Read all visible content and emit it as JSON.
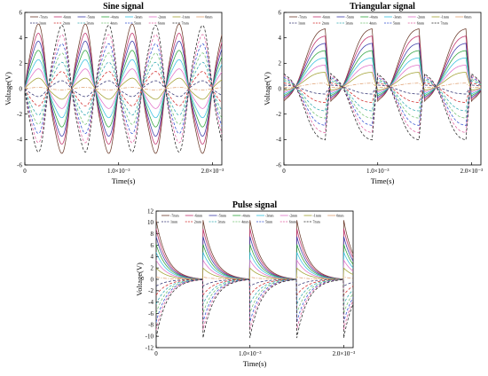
{
  "chart_data": [
    {
      "type": "line",
      "title": "Sine signal",
      "xlabel": "Time(s)",
      "ylabel": "Voltage(V)",
      "xlim": [
        0,
        0.0021
      ],
      "ylim": [
        -6,
        6
      ],
      "xticks": [
        0,
        0.001,
        0.002
      ],
      "xtick_labels": [
        "0",
        "1.0×10⁻³",
        "2.0×10⁻³"
      ],
      "yticks": [
        -6,
        -4,
        -2,
        0,
        2,
        4,
        6
      ],
      "ytick_labels": [
        "-6",
        "-4",
        "-2",
        "0",
        "2",
        "4",
        "6"
      ],
      "waveform": "sine",
      "period": 0.0005,
      "grid": false,
      "legend_placement": "top",
      "series": [
        {
          "name": "-7mm",
          "amplitude": 4.9
        },
        {
          "name": "-6mm",
          "amplitude": 4.2
        },
        {
          "name": "-5mm",
          "amplitude": 3.6
        },
        {
          "name": "-4mm",
          "amplitude": 2.9
        },
        {
          "name": "-3mm",
          "amplitude": 2.2
        },
        {
          "name": "-2mm",
          "amplitude": 1.5
        },
        {
          "name": "-1mm",
          "amplitude": 0.8
        },
        {
          "name": "0mm",
          "amplitude": 0.1
        },
        {
          "name": "1mm",
          "amplitude": -0.6
        },
        {
          "name": "2mm",
          "amplitude": -1.3
        },
        {
          "name": "3mm",
          "amplitude": -2.0
        },
        {
          "name": "4mm",
          "amplitude": -2.7
        },
        {
          "name": "5mm",
          "amplitude": -3.4
        },
        {
          "name": "6mm",
          "amplitude": -4.1
        },
        {
          "name": "7mm",
          "amplitude": -4.8
        }
      ]
    },
    {
      "type": "line",
      "title": "Triangular signal",
      "xlabel": "Time(s)",
      "ylabel": "Voltage(V)",
      "xlim": [
        0,
        0.0021
      ],
      "ylim": [
        -6,
        6
      ],
      "xticks": [
        0,
        0.001,
        0.002
      ],
      "xtick_labels": [
        "0",
        "1.0×10⁻³",
        "2.0×10⁻³"
      ],
      "yticks": [
        -6,
        -4,
        -2,
        0,
        2,
        4,
        6
      ],
      "ytick_labels": [
        "-6",
        "-4",
        "-2",
        "0",
        "2",
        "4",
        "6"
      ],
      "waveform": "triangular",
      "period": 0.0005,
      "grid": false,
      "legend_placement": "top",
      "series": [
        {
          "name": "-7mm",
          "amplitude": 4.8
        },
        {
          "name": "-6mm",
          "amplitude": 4.2
        },
        {
          "name": "-5mm",
          "amplitude": 3.6
        },
        {
          "name": "-4mm",
          "amplitude": 3.0
        },
        {
          "name": "-3mm",
          "amplitude": 2.4
        },
        {
          "name": "-2mm",
          "amplitude": 1.8
        },
        {
          "name": "-1mm",
          "amplitude": 1.2
        },
        {
          "name": "0mm",
          "amplitude": 0.3
        },
        {
          "name": "1mm",
          "amplitude": -0.6
        },
        {
          "name": "2mm",
          "amplitude": -1.3
        },
        {
          "name": "3mm",
          "amplitude": -2.0
        },
        {
          "name": "4mm",
          "amplitude": -2.6
        },
        {
          "name": "5mm",
          "amplitude": -3.2
        },
        {
          "name": "6mm",
          "amplitude": -3.8
        },
        {
          "name": "7mm",
          "amplitude": -4.4
        }
      ]
    },
    {
      "type": "line",
      "title": "Pulse signal",
      "xlabel": "Time(s)",
      "ylabel": "Voltage(V)",
      "xlim": [
        0,
        0.0021
      ],
      "ylim": [
        -12,
        12
      ],
      "xticks": [
        0,
        0.001,
        0.002
      ],
      "xtick_labels": [
        "0",
        "1.0×10⁻³",
        "2.0×10⁻³"
      ],
      "yticks": [
        -12,
        -10,
        -8,
        -6,
        -4,
        -2,
        0,
        2,
        4,
        6,
        8,
        10,
        12
      ],
      "ytick_labels": [
        "-12",
        "-10",
        "-8",
        "-6",
        "-4",
        "-2",
        "0",
        "2",
        "4",
        "6",
        "8",
        "10",
        "12"
      ],
      "waveform": "pulse",
      "period": 0.0005,
      "grid": false,
      "legend_placement": "top",
      "series": [
        {
          "name": "-7mm",
          "amplitude": 10.5
        },
        {
          "name": "-6mm",
          "amplitude": 9.0
        },
        {
          "name": "-5mm",
          "amplitude": 7.6
        },
        {
          "name": "-4mm",
          "amplitude": 6.2
        },
        {
          "name": "-3mm",
          "amplitude": 4.8
        },
        {
          "name": "-2mm",
          "amplitude": 3.4
        },
        {
          "name": "-1mm",
          "amplitude": 2.0
        },
        {
          "name": "0mm",
          "amplitude": 0.4
        },
        {
          "name": "1mm",
          "amplitude": -1.2
        },
        {
          "name": "2mm",
          "amplitude": -2.8
        },
        {
          "name": "3mm",
          "amplitude": -4.4
        },
        {
          "name": "4mm",
          "amplitude": -6.0
        },
        {
          "name": "5mm",
          "amplitude": -7.6
        },
        {
          "name": "6mm",
          "amplitude": -9.0
        },
        {
          "name": "7mm",
          "amplitude": -10.4
        }
      ]
    }
  ],
  "colors": {
    "-7mm": "#6b3a2a",
    "-6mm": "#c0306a",
    "-5mm": "#3a3aa8",
    "-4mm": "#2aa23a",
    "-3mm": "#35c0e0",
    "-2mm": "#e070c8",
    "-1mm": "#a0a030",
    "0mm": "#e0a070",
    "1mm": "#303070",
    "2mm": "#d02828",
    "3mm": "#30a8b0",
    "4mm": "#70c070",
    "5mm": "#3050d0",
    "6mm": "#e060a0",
    "7mm": "#222222"
  }
}
